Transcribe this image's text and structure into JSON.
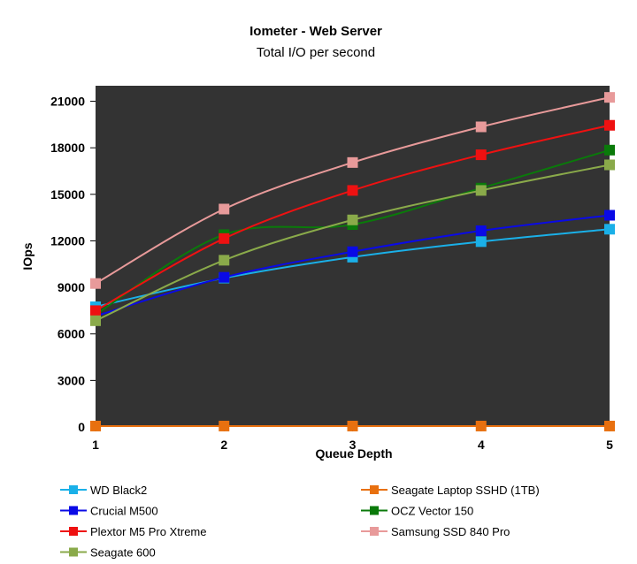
{
  "chart_data": {
    "type": "line",
    "title": "Iometer - Web Server",
    "subtitle": "Total I/O per second",
    "xlabel": "Queue Depth",
    "ylabel": "IOps",
    "x": [
      1,
      2,
      3,
      4,
      5
    ],
    "x_ticks": [
      "1",
      "2",
      "3",
      "4",
      "5"
    ],
    "y_ticks": [
      "0",
      "3000",
      "6000",
      "9000",
      "12000",
      "15000",
      "18000",
      "21000"
    ],
    "ylim": [
      0,
      22000
    ],
    "grid": false,
    "plot_background": "#333333",
    "legend_position": "bottom",
    "series": [
      {
        "name": "WD Black2",
        "color": "#1ab0e8",
        "values": [
          7750,
          9600,
          10950,
          11950,
          12750
        ]
      },
      {
        "name": "Seagate Laptop SSHD (1TB)",
        "color": "#e8700f",
        "values": [
          60,
          60,
          60,
          60,
          60
        ]
      },
      {
        "name": "Crucial M500",
        "color": "#0a0ae6",
        "values": [
          7150,
          9650,
          11300,
          12650,
          13650
        ]
      },
      {
        "name": "OCZ Vector 150",
        "color": "#0a7a0a",
        "values": [
          7250,
          12400,
          13050,
          15400,
          17850
        ]
      },
      {
        "name": "Plextor M5 Pro Xtreme",
        "color": "#ee1111",
        "values": [
          7500,
          12150,
          15250,
          17550,
          19450
        ]
      },
      {
        "name": "Samsung SSD 840 Pro",
        "color": "#e89a9a",
        "values": [
          9250,
          14050,
          17050,
          19350,
          21250
        ]
      },
      {
        "name": "Seagate 600",
        "color": "#8aaa4a",
        "values": [
          6850,
          10750,
          13350,
          15250,
          16900
        ]
      }
    ]
  }
}
